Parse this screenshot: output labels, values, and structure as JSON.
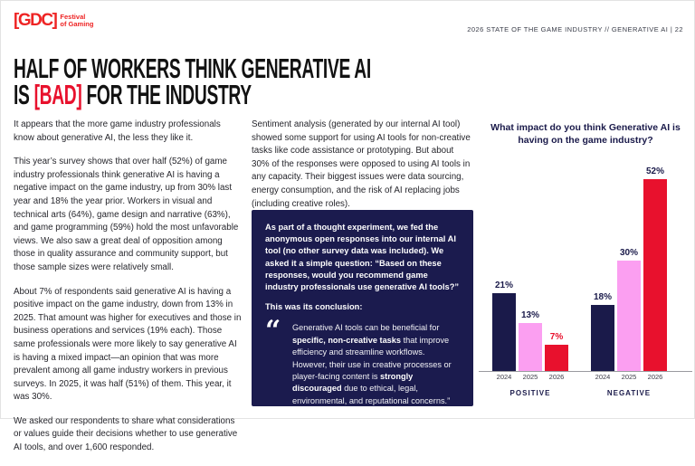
{
  "header": {
    "logo_mark": "[GDC]",
    "logo_tagline_line1": "Festival",
    "logo_tagline_line2": "of Gaming",
    "page_info": "2026 STATE OF THE GAME INDUSTRY  //  GENERATIVE AI  |  22"
  },
  "title": {
    "line1": "HALF OF WORKERS THINK GENERATIVE AI",
    "line2_prefix": "IS ",
    "line2_highlight": "[BAD]",
    "line2_suffix": " FOR THE INDUSTRY"
  },
  "article": {
    "col1_paragraphs": [
      "It appears that the more game industry professionals know about generative AI, the less they like it.",
      "This year’s survey shows that over half (52%) of game industry professionals think generative AI is having a negative impact on the game industry, up from 30% last year and 18% the year prior. Workers in visual and technical arts (64%), game design and narrative (63%), and game programming (59%) hold the most unfavorable views. We also saw a great deal of opposition among those in quality assurance and community support, but those sample sizes were relatively small.",
      "About 7% of respondents said generative AI is having a positive impact on the game industry, down from 13% in 2025. That amount was higher for executives and those in business operations and services (19% each). Those same professionals were more likely to say generative AI is having a mixed impact—an opinion that was more prevalent among all game industry workers in previous surveys. In 2025, it was half (51%) of them. This year, it was 30%.",
      "We asked our respondents to share what considerations or values guide their decisions whether to use generative AI tools, and over 1,600 responded."
    ],
    "col2_paragraph": "Sentiment analysis (generated by our internal AI tool) showed some support for using AI tools for non-creative tasks like code assistance or prototyping. But about 30% of the responses were opposed to using AI tools in any capacity. Their biggest issues were data sourcing, energy consumption, and the risk of AI replacing jobs (including creative roles).",
    "callout": {
      "intro": "As part of a thought experiment, we fed the anonymous open responses into our internal AI tool (no other survey data was included). We asked it a simple question: “Based on these responses, would you recommend game industry professionals use generative AI tools?”",
      "lead_in": "This was its conclusion:",
      "quote_glyph": "“",
      "quote_prefix": "Generative AI tools can be beneficial for ",
      "quote_bold1": "specific, non-creative tasks",
      "quote_mid": " that improve efficiency and streamline workflows. However, their use in creative processes or player-facing content is ",
      "quote_bold2": "strongly discouraged",
      "quote_suffix": " due to ethical, legal, environmental, and reputational concerns.”"
    }
  },
  "chart_data": {
    "type": "bar",
    "title": "What impact do you think Generative AI is having on the game industry?",
    "unit": "%",
    "ylim": [
      0,
      55
    ],
    "grid": false,
    "legend": "none",
    "categories": [
      "2024",
      "2025",
      "2026"
    ],
    "groups": [
      {
        "label": "POSITIVE",
        "values": [
          21,
          13,
          7
        ]
      },
      {
        "label": "NEGATIVE",
        "values": [
          18,
          30,
          52
        ]
      }
    ],
    "series_colors": [
      "#1a1a4a",
      "#fb9ff1",
      "#e8112d"
    ],
    "value_label_colors": [
      [
        "#1a1a4a",
        "#1a1a4a",
        "#e8112d"
      ],
      [
        "#1a1a4a",
        "#1a1a4a",
        "#1a1a4a"
      ]
    ]
  },
  "colors": {
    "navy": "#1b1b4e",
    "pink": "#fb9ff1",
    "red": "#e8112d",
    "logo_red": "#ee2424"
  }
}
